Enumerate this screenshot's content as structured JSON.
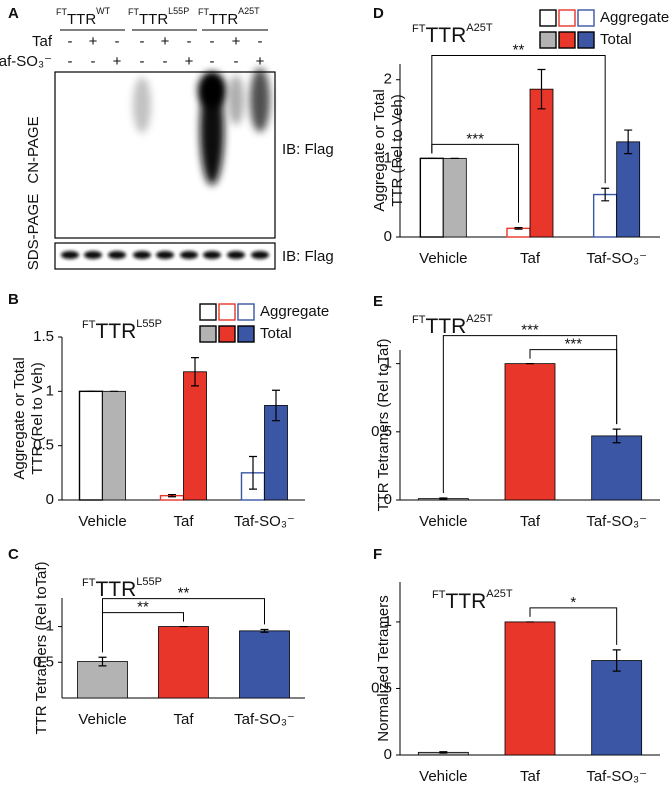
{
  "blot": {
    "panel": "A",
    "groups": [
      [
        "FT",
        "TTR",
        "WT"
      ],
      [
        "FT",
        "TTR",
        "L55P"
      ],
      [
        "FT",
        "TTR",
        "A25T"
      ]
    ],
    "rows": [
      {
        "label": "Taf",
        "signs": [
          "-",
          "+",
          "-",
          "-",
          "+",
          "-",
          "-",
          "+",
          "-"
        ]
      },
      {
        "label": "Taf-SO₃⁻",
        "signs": [
          "-",
          "-",
          "+",
          "-",
          "-",
          "+",
          "-",
          "-",
          "+"
        ]
      }
    ],
    "gels": [
      "CN-PAGE",
      "SDS-PAGE"
    ],
    "antibody": [
      "IB: Flag",
      "IB: Flag"
    ]
  },
  "chart_data": [
    {
      "type": "grouped_bar",
      "panel": "B",
      "title": [
        "FT",
        "TTR",
        "L55P"
      ],
      "ylabel": [
        "Aggregate or Total",
        "TTR (Rel to Veh)"
      ],
      "categories": [
        "Vehicle",
        "Taf",
        "Taf-SO₃⁻"
      ],
      "category_colors": [
        "#000000",
        "#e8362a",
        "#3a56a5"
      ],
      "series": [
        {
          "name": "Aggregate",
          "filled": false,
          "colors": [
            "#000000",
            "#e8362a",
            "#3a56a5"
          ],
          "values": [
            1,
            0.04,
            0.25
          ],
          "errors": [
            0,
            0.01,
            0.15
          ]
        },
        {
          "name": "Total",
          "filled": true,
          "colors": [
            "#b3b3b3",
            "#e8362a",
            "#3a56a5"
          ],
          "values": [
            1,
            1.18,
            0.87
          ],
          "errors": [
            0,
            0.13,
            0.14
          ]
        }
      ],
      "ylim": [
        0,
        1.5
      ],
      "yticks": [
        0,
        0.5,
        1,
        1.5
      ]
    },
    {
      "type": "bar",
      "panel": "C",
      "title": [
        "FT",
        "TTR",
        "L55P"
      ],
      "ylabel": [
        "TTR Tetramers (Rel toTaf)"
      ],
      "categories": [
        "Vehicle",
        "Taf",
        "Taf-SO₃⁻"
      ],
      "category_colors": [
        "#000000",
        "#e8362a",
        "#3a56a5"
      ],
      "colors": [
        "#b3b3b3",
        "#e8362a",
        "#3a56a5"
      ],
      "values": [
        0.51,
        1,
        0.94
      ],
      "errors": [
        0.06,
        0,
        0.02
      ],
      "ylim": [
        0,
        1.4
      ],
      "yticks": [
        0.5,
        1
      ],
      "annotations": [
        {
          "text": "**",
          "from": 0,
          "to": 1
        },
        {
          "text": "**",
          "from": 0,
          "to": 2
        }
      ]
    },
    {
      "type": "grouped_bar",
      "panel": "D",
      "title": [
        "FT",
        "TTR",
        "A25T"
      ],
      "ylabel": [
        "Aggregate or Total",
        "TTR (Rel to Veh)"
      ],
      "categories": [
        "Vehicle",
        "Taf",
        "Taf-SO₃⁻"
      ],
      "category_colors": [
        "#000000",
        "#e8362a",
        "#3a56a5"
      ],
      "series": [
        {
          "name": "Aggregate",
          "filled": false,
          "colors": [
            "#000000",
            "#e8362a",
            "#3a56a5"
          ],
          "values": [
            1,
            0.11,
            0.54
          ],
          "errors": [
            0,
            0.01,
            0.08
          ]
        },
        {
          "name": "Total",
          "filled": true,
          "colors": [
            "#b3b3b3",
            "#e8362a",
            "#3a56a5"
          ],
          "values": [
            1,
            1.88,
            1.21
          ],
          "errors": [
            0,
            0.25,
            0.15
          ]
        }
      ],
      "ylim": [
        0,
        2.2
      ],
      "yticks": [
        0,
        1,
        2
      ],
      "annotations": [
        {
          "text": "***",
          "from": 0,
          "to": 1,
          "series": 0
        },
        {
          "text": "**",
          "from": 0,
          "to": 2,
          "series": 0
        }
      ]
    },
    {
      "type": "bar",
      "panel": "E",
      "title": [
        "FT",
        "TTR",
        "A25T"
      ],
      "ylabel": [
        "TTR Tetramers (Rel toTaf)"
      ],
      "categories": [
        "Vehicle",
        "Taf",
        "Taf-SO₃⁻"
      ],
      "category_colors": [
        "#000000",
        "#e8362a",
        "#3a56a5"
      ],
      "colors": [
        "#b3b3b3",
        "#e8362a",
        "#3a56a5"
      ],
      "values": [
        0.01,
        1,
        0.47
      ],
      "errors": [
        0.005,
        0,
        0.05
      ],
      "ylim": [
        0,
        1.1
      ],
      "yticks": [
        0,
        0.5,
        1
      ],
      "annotations": [
        {
          "text": "***",
          "from": 1,
          "to": 2
        },
        {
          "text": "***",
          "from": 0,
          "to": 2
        }
      ]
    },
    {
      "type": "bar",
      "panel": "F",
      "title": [
        "FT",
        "TTR",
        "A25T"
      ],
      "ylabel": [
        "Normalized  Tetramers"
      ],
      "categories": [
        "Vehicle",
        "Taf",
        "Taf-SO₃⁻"
      ],
      "category_colors": [
        "#000000",
        "#e8362a",
        "#3a56a5"
      ],
      "colors": [
        "#b3b3b3",
        "#e8362a",
        "#3a56a5"
      ],
      "values": [
        0.02,
        1,
        0.71
      ],
      "errors": [
        0.005,
        0,
        0.08
      ],
      "ylim": [
        0,
        1.3
      ],
      "yticks": [
        0,
        0.5,
        1
      ],
      "annotations": [
        {
          "text": "*",
          "from": 1,
          "to": 2
        }
      ]
    }
  ]
}
